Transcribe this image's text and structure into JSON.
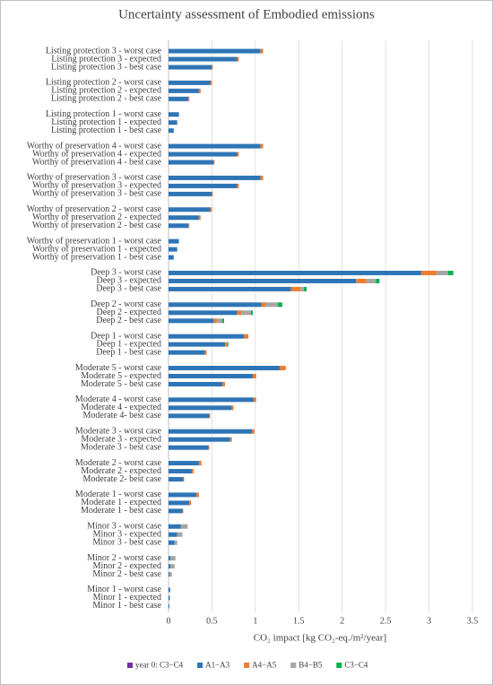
{
  "chart_data": {
    "type": "stacked-barh",
    "title": "Uncertainty assessment of Embodied emissions",
    "x_label": "CO₂ impact [kg CO₂-eq./m²/year]",
    "categories": [
      "Listing protection  3 - worst case",
      "Listing protection  3 - expected",
      "Listing protection  3 - best case",
      "Listing protection  2 - worst case",
      "Listing protection  2 - expected",
      "Listing protection  2 - best case",
      "Listing protection  1 - worst case",
      "Listing protection  1 - expected",
      "Listing protection  1 - best case",
      "Worthy of preservation 4 - worst case",
      "Worthy of preservation 4 - expected",
      "Worthy of preservation 4 - best case",
      "Worthy of preservation 3 - worst case",
      "Worthy of preservation 3 - expected",
      "Worthy of preservation 3 - best case",
      "Worthy of preservation 2 - worst case",
      "Worthy of preservation 2 - expected",
      "Worthy of preservation 2 - best case",
      "Worthy of preservation 1 - worst case",
      "Worthy of preservation 1 - expected",
      "Worthy of preservation 1 - best case",
      "Deep 3 - worst case",
      "Deep 3 - expected",
      "Deep 3 - best case",
      "Deep 2 - worst case",
      "Deep 2 - expected",
      "Deep 2 - best case",
      "Deep 1 - worst case",
      "Deep 1 - expected",
      "Deep 1 - best case",
      "Moderate 5 - worst case",
      "Moderate 5 - expected",
      "Moderate 5 - best case",
      "Moderate 4 - worst case",
      "Moderate 4 - expected",
      "Moderate 4- best case",
      "Moderate 3 - worst case",
      "Moderate 3 - expected",
      "Moderate 3 - best case",
      "Moderate 2 - worst case",
      "Moderate 2 - expected",
      "Moderate 2- best case",
      "Moderate 1 - worst case",
      "Moderate 1 - expected",
      "Moderate 1 - best case",
      "Minor 3 - worst case",
      "Minor 3 - expected",
      "Minor 3 - best case",
      "Minor 2 - worst case",
      "Minor 2 - expected",
      "Minor 2 - best case",
      "Minor 1 - worst case",
      "Minor 1 - expected",
      "Minor 1 - best case"
    ],
    "series": [
      {
        "name": "year 0: C3−C4",
        "color": "#7030a0",
        "values": [
          0,
          0,
          0,
          0,
          0,
          0,
          0,
          0,
          0,
          0,
          0,
          0,
          0,
          0,
          0,
          0,
          0,
          0,
          0,
          0,
          0,
          0,
          0,
          0,
          0,
          0,
          0,
          0,
          0,
          0,
          0,
          0,
          0,
          0,
          0,
          0,
          0,
          0,
          0,
          0,
          0,
          0,
          0,
          0,
          0,
          0,
          0,
          0,
          0,
          0,
          0,
          0,
          0,
          0
        ]
      },
      {
        "name": "A1−A3",
        "color": "#2e75b6",
        "values": [
          1.06,
          0.79,
          0.5,
          0.48,
          0.35,
          0.23,
          0.12,
          0.1,
          0.06,
          1.06,
          0.79,
          0.52,
          1.06,
          0.79,
          0.5,
          0.48,
          0.35,
          0.23,
          0.12,
          0.1,
          0.06,
          2.91,
          2.16,
          1.41,
          1.07,
          0.79,
          0.52,
          0.87,
          0.65,
          0.42,
          1.28,
          0.97,
          0.62,
          0.98,
          0.73,
          0.47,
          0.96,
          0.71,
          0.46,
          0.35,
          0.27,
          0.17,
          0.32,
          0.24,
          0.16,
          0.14,
          0.1,
          0.07,
          0.02,
          0.02,
          0.01,
          0.02,
          0.015,
          0.01
        ]
      },
      {
        "name": "A4−A5",
        "color": "#ed7d31",
        "values": [
          0.03,
          0.02,
          0.01,
          0.02,
          0.02,
          0.01,
          0,
          0,
          0,
          0.03,
          0.02,
          0.01,
          0.03,
          0.02,
          0.01,
          0.02,
          0.02,
          0.01,
          0,
          0,
          0,
          0.18,
          0.12,
          0.11,
          0.05,
          0.05,
          0.04,
          0.05,
          0.03,
          0.02,
          0.07,
          0.04,
          0.03,
          0.03,
          0.02,
          0.01,
          0.03,
          0.02,
          0.01,
          0.03,
          0.02,
          0.01,
          0.03,
          0.02,
          0.01,
          0,
          0,
          0,
          0,
          0,
          0,
          0,
          0,
          0
        ]
      },
      {
        "name": "B4−B5",
        "color": "#a5a5a5",
        "values": [
          0,
          0,
          0,
          0,
          0,
          0,
          0,
          0,
          0,
          0,
          0,
          0,
          0,
          0,
          0,
          0,
          0,
          0,
          0,
          0,
          0,
          0.13,
          0.11,
          0.04,
          0.14,
          0.11,
          0.06,
          0,
          0,
          0,
          0,
          0,
          0,
          0,
          0,
          0,
          0,
          0,
          0,
          0,
          0,
          0,
          0,
          0,
          0,
          0.08,
          0.06,
          0.03,
          0.06,
          0.05,
          0.03,
          0,
          0,
          0
        ]
      },
      {
        "name": "C3−C4",
        "color": "#00b050",
        "values": [
          0,
          0,
          0,
          0,
          0,
          0,
          0,
          0,
          0,
          0,
          0,
          0,
          0,
          0,
          0,
          0,
          0,
          0,
          0,
          0,
          0,
          0.06,
          0.04,
          0.03,
          0.05,
          0.02,
          0.02,
          0,
          0.01,
          0,
          0,
          0,
          0,
          0,
          0,
          0,
          0,
          0,
          0,
          0,
          0,
          0,
          0,
          0,
          0,
          0,
          0,
          0,
          0,
          0,
          0,
          0,
          0,
          0
        ]
      }
    ],
    "xlim": [
      0,
      3.5
    ],
    "xticks": [
      0,
      0.5,
      1,
      1.5,
      2,
      2.5,
      3,
      3.5
    ],
    "grid": true,
    "legend": "bottom"
  }
}
